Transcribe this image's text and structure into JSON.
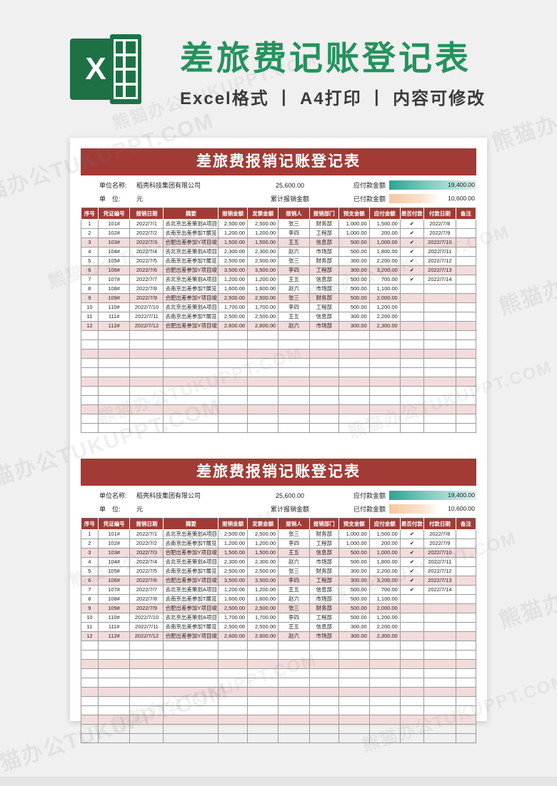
{
  "header": {
    "logo_letter": "X",
    "title": "差旅费记账登记表",
    "subtitle": "Excel格式 丨 A4打印 丨 内容可修改",
    "title_color": "#23935D",
    "logo_color": "#1E7145"
  },
  "watermark_text": "熊猫办公TUKUPPT.COM",
  "sheet": {
    "banner_title": "差旅费报销记账登记表",
    "info": {
      "unit_name_label": "单位名称:",
      "unit_name": "稻壳科技集团有限公司",
      "unit_label": "单　位:",
      "unit_value": "元",
      "total_value": "25,600.00",
      "total_label": "累计报销金额",
      "payable_label": "应付款金额",
      "payable_value": "19,400.00",
      "paid_label": "已付款金额",
      "paid_value": "10,600.00"
    },
    "columns": [
      "序号",
      "凭证编号",
      "报销日期",
      "摘要",
      "报销金额",
      "发票金额",
      "报销人",
      "报销部门",
      "预支金额",
      "应付金额",
      "是否付款",
      "付款日期",
      "备注"
    ],
    "rows": [
      [
        "1",
        "101#",
        "2022/7/1",
        "去北京出差策划A项目",
        "2,500.00",
        "2,500.00",
        "张三",
        "财务部",
        "1,000.00",
        "1,500.00",
        "✔",
        "2022/7/8",
        ""
      ],
      [
        "2",
        "102#",
        "2022/7/2",
        "去南京出差参加T展览",
        "1,200.00",
        "1,200.00",
        "李四",
        "工程部",
        "1,000.00",
        "200.00",
        "✔",
        "2022/7/9",
        ""
      ],
      [
        "3",
        "103#",
        "2022/7/3",
        "合肥出差参加Y项目竣工",
        "1,500.00",
        "1,500.00",
        "王五",
        "信息部",
        "500.00",
        "1,000.00",
        "✔",
        "2022/7/10",
        ""
      ],
      [
        "4",
        "104#",
        "2022/7/4",
        "去北京出差策划A项目",
        "2,300.00",
        "2,300.00",
        "赵六",
        "市场部",
        "500.00",
        "1,800.00",
        "✔",
        "2022/7/11",
        ""
      ],
      [
        "5",
        "105#",
        "2022/7/5",
        "去南京出差参加T展览",
        "2,500.00",
        "2,500.00",
        "张三",
        "财务部",
        "300.00",
        "2,200.00",
        "✔",
        "2022/7/12",
        ""
      ],
      [
        "6",
        "106#",
        "2022/7/6",
        "合肥出差参加Y项目竣工",
        "3,500.00",
        "3,500.00",
        "李四",
        "工程部",
        "300.00",
        "3,200.00",
        "✔",
        "2022/7/13",
        ""
      ],
      [
        "7",
        "107#",
        "2022/7/7",
        "去北京出差策划A项目",
        "1,200.00",
        "1,200.00",
        "王五",
        "信息部",
        "500.00",
        "700.00",
        "✔",
        "2022/7/14",
        ""
      ],
      [
        "8",
        "108#",
        "2022/7/8",
        "去南京出差参加T展览",
        "1,600.00",
        "1,600.00",
        "赵六",
        "市场部",
        "500.00",
        "1,100.00",
        "",
        "",
        ""
      ],
      [
        "9",
        "109#",
        "2022/7/9",
        "合肥出差参加Y项目竣工",
        "2,500.00",
        "2,500.00",
        "张三",
        "财务部",
        "500.00",
        "2,000.00",
        "",
        "",
        ""
      ],
      [
        "10",
        "110#",
        "2022/7/10",
        "去北京出差策划A项目",
        "1,700.00",
        "1,700.00",
        "李四",
        "工程部",
        "500.00",
        "1,200.00",
        "",
        "",
        ""
      ],
      [
        "11",
        "111#",
        "2022/7/11",
        "去南京出差参加T展览",
        "2,500.00",
        "2,500.00",
        "王五",
        "信息部",
        "300.00",
        "2,200.00",
        "",
        "",
        ""
      ],
      [
        "12",
        "112#",
        "2022/7/12",
        "合肥出差参加Y项目竣工",
        "2,600.00",
        "2,600.00",
        "赵六",
        "市场部",
        "300.00",
        "2,300.00",
        "",
        "",
        ""
      ]
    ],
    "empty_row_count": 11,
    "colors": {
      "banner": "#A23B36",
      "row_highlight": "#F2DCDB",
      "bar_teal": "#2BA593",
      "bar_orange": "#F6C79F"
    }
  }
}
